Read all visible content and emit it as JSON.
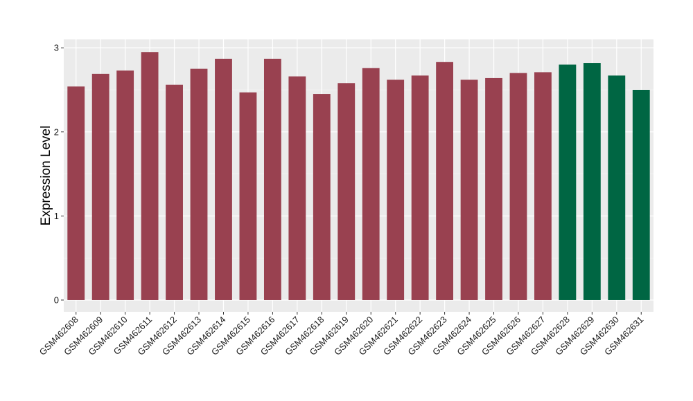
{
  "chart_data": {
    "type": "bar",
    "title": "",
    "xlabel": "",
    "ylabel": "Expression Level",
    "ylim": [
      -0.14,
      3.1
    ],
    "yticks": [
      "0",
      "1",
      "2",
      "3"
    ],
    "grid": true,
    "panel_background": "#ebebeb",
    "categories": [
      "GSM462608",
      "GSM462609",
      "GSM462610",
      "GSM462611",
      "GSM462612",
      "GSM462613",
      "GSM462614",
      "GSM462615",
      "GSM462616",
      "GSM462617",
      "GSM462618",
      "GSM462619",
      "GSM462620",
      "GSM462621",
      "GSM462622",
      "GSM462623",
      "GSM462624",
      "GSM462625",
      "GSM462626",
      "GSM462627",
      "GSM462628",
      "GSM462629",
      "GSM462630",
      "GSM462631"
    ],
    "values": [
      2.54,
      2.69,
      2.73,
      2.95,
      2.56,
      2.75,
      2.87,
      2.47,
      2.87,
      2.66,
      2.45,
      2.58,
      2.76,
      2.62,
      2.67,
      2.83,
      2.62,
      2.64,
      2.7,
      2.71,
      2.8,
      2.82,
      2.67,
      2.5
    ],
    "bar_colors": [
      "#994150",
      "#994150",
      "#994150",
      "#994150",
      "#994150",
      "#994150",
      "#994150",
      "#994150",
      "#994150",
      "#994150",
      "#994150",
      "#994150",
      "#994150",
      "#994150",
      "#994150",
      "#994150",
      "#994150",
      "#994150",
      "#994150",
      "#994150",
      "#006643",
      "#006643",
      "#006643",
      "#006643"
    ]
  }
}
